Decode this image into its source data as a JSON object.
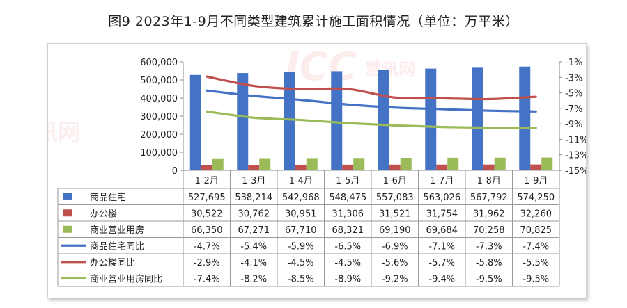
{
  "title": "图9  2023年1-9月不同类型建筑累计施工面积情况（单位：万平米）",
  "watermark": {
    "brand": "ICC",
    "text": "慧讯网"
  },
  "chart_data": {
    "type": "bar+line",
    "categories": [
      "1-2月",
      "1-3月",
      "1-4月",
      "1-5月",
      "1-6月",
      "1-7月",
      "1-8月",
      "1-9月"
    ],
    "left_axis": {
      "min": 0,
      "max": 600000,
      "ticks": [
        0,
        100000,
        200000,
        300000,
        400000,
        500000,
        600000
      ],
      "tick_labels": [
        "0",
        "100,000",
        "200,000",
        "300,000",
        "400,000",
        "500,000",
        "600,000"
      ]
    },
    "right_axis": {
      "min": -15,
      "max": -1,
      "ticks": [
        -1,
        -3,
        -5,
        -7,
        -9,
        -11,
        -13,
        -15
      ],
      "tick_labels": [
        "-1%",
        "-3%",
        "-5%",
        "-7%",
        "-9%",
        "-11%",
        "-13%",
        "-15%"
      ]
    },
    "bar_series": [
      {
        "name": "商品住宅",
        "color": "#4472C4",
        "values": [
          527695,
          538214,
          542968,
          548475,
          557083,
          563026,
          567792,
          574250
        ],
        "labels": [
          "527,695",
          "538,214",
          "542,968",
          "548,475",
          "557,083",
          "563,026",
          "567,792",
          "574,250"
        ]
      },
      {
        "name": "办公楼",
        "color": "#C0504D",
        "values": [
          30522,
          30762,
          30951,
          31306,
          31521,
          31754,
          31962,
          32260
        ],
        "labels": [
          "30,522",
          "30,762",
          "30,951",
          "31,306",
          "31,521",
          "31,754",
          "31,962",
          "32,260"
        ]
      },
      {
        "name": "商业营业用房",
        "color": "#9BBB59",
        "values": [
          66350,
          67271,
          67710,
          68321,
          69190,
          69684,
          70258,
          70825
        ],
        "labels": [
          "66,350",
          "67,271",
          "67,710",
          "68,321",
          "69,190",
          "69,684",
          "70,258",
          "70,825"
        ]
      }
    ],
    "line_series": [
      {
        "name": "商品住宅同比",
        "color": "#4472C4",
        "values": [
          -4.7,
          -5.4,
          -5.9,
          -6.5,
          -6.9,
          -7.1,
          -7.3,
          -7.4
        ],
        "labels": [
          "-4.7%",
          "-5.4%",
          "-5.9%",
          "-6.5%",
          "-6.9%",
          "-7.1%",
          "-7.3%",
          "-7.4%"
        ]
      },
      {
        "name": "办公楼同比",
        "color": "#C0504D",
        "values": [
          -2.9,
          -4.1,
          -4.5,
          -4.5,
          -5.6,
          -5.7,
          -5.8,
          -5.5
        ],
        "labels": [
          "-2.9%",
          "-4.1%",
          "-4.5%",
          "-4.5%",
          "-5.6%",
          "-5.7%",
          "-5.8%",
          "-5.5%"
        ]
      },
      {
        "name": "商业营业用房同比",
        "color": "#9BBB59",
        "values": [
          -7.4,
          -8.2,
          -8.5,
          -8.9,
          -9.2,
          -9.4,
          -9.5,
          -9.5
        ],
        "labels": [
          "-7.4%",
          "-8.2%",
          "-8.5%",
          "-8.9%",
          "-9.2%",
          "-9.4%",
          "-9.5%",
          "-9.5%"
        ]
      }
    ]
  }
}
